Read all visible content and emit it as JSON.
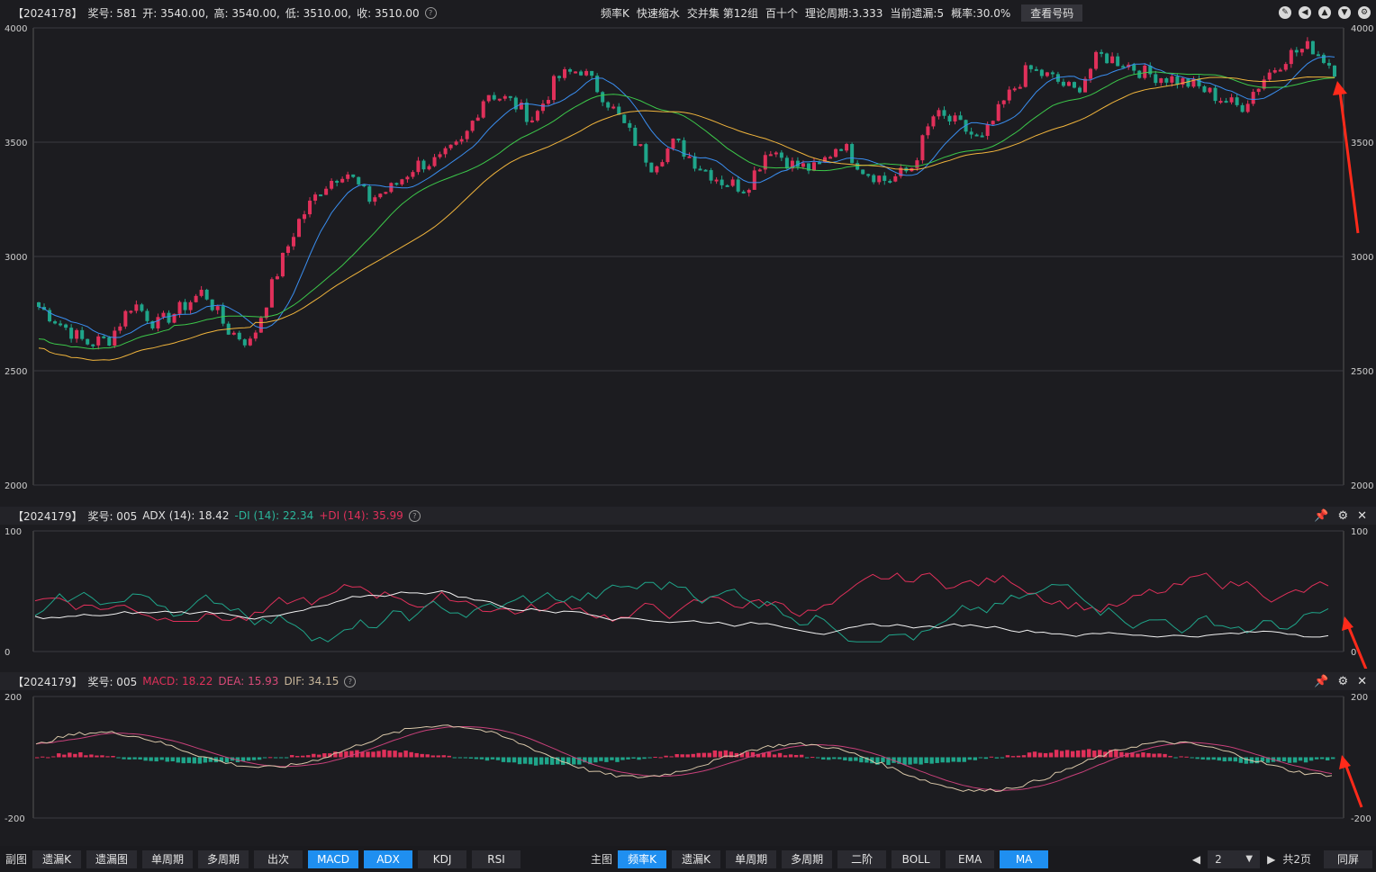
{
  "main": {
    "header": {
      "id": "【2024178】",
      "prize_label": "奖号: 581",
      "open": "开: 3540.00,",
      "high": "高: 3540.00,",
      "low": "低: 3510.00,",
      "close": "收: 3510.00",
      "center_items": [
        "频率K",
        "快速缩水",
        "交并集 第12组",
        "百十个",
        "理论周期:3.333",
        "当前遗漏:5",
        "概率:30.0%"
      ],
      "lookup_button": "查看号码"
    },
    "y_ticks": [
      "4000",
      "3500",
      "3000",
      "2500",
      "2000"
    ],
    "y_range": [
      2000,
      4000
    ]
  },
  "adx_panel": {
    "id": "【2024179】",
    "prize_label": "奖号: 005",
    "adx": "ADX (14): 18.42",
    "minus_di": "-DI (14): 22.34",
    "plus_di": "+DI (14): 35.99",
    "y_ticks": [
      "100",
      "0"
    ],
    "y_range": [
      0,
      100
    ]
  },
  "macd_panel": {
    "id": "【2024179】",
    "prize_label": "奖号: 005",
    "macd": "MACD: 18.22",
    "dea": "DEA: 15.93",
    "dif": "DIF: 34.15",
    "y_ticks": [
      "200",
      "-200"
    ],
    "y_range": [
      -200,
      200
    ]
  },
  "bottom": {
    "sub_label": "副图",
    "sub_buttons": [
      "遗漏K",
      "遗漏图",
      "单周期",
      "多周期",
      "出次",
      "MACD",
      "ADX",
      "KDJ",
      "RSI"
    ],
    "sub_active": [
      "MACD",
      "ADX"
    ],
    "main_label": "主图",
    "main_buttons": [
      "频率K",
      "遗漏K",
      "单周期",
      "多周期",
      "二阶",
      "BOLL",
      "EMA",
      "MA"
    ],
    "main_active": [
      "频率K",
      "MA"
    ],
    "page_value": "2",
    "page_total": "共2页",
    "fullscreen": "同屏"
  },
  "colors": {
    "up": "#e0305a",
    "down": "#1fa58a",
    "ma_fast": "#3a8ef0",
    "ma_mid": "#3cc84a",
    "ma_slow": "#f0b43c",
    "arrow": "#ff2a1a"
  },
  "chart_data": [
    {
      "type": "candlestick",
      "title": "频率K",
      "y_range": [
        2000,
        4000
      ],
      "approx_close_trend": [
        2780,
        2700,
        2620,
        2640,
        2800,
        2700,
        2770,
        2850,
        2680,
        2620,
        2900,
        3150,
        3300,
        3380,
        3250,
        3300,
        3400,
        3420,
        3500,
        3720,
        3680,
        3600,
        3780,
        3820,
        3700,
        3550,
        3400,
        3500,
        3400,
        3330,
        3300,
        3480,
        3400,
        3380,
        3500,
        3380,
        3330,
        3380,
        3620,
        3580,
        3500,
        3680,
        3820,
        3780,
        3720,
        3880,
        3850,
        3800,
        3780,
        3750,
        3700,
        3650,
        3780,
        3880,
        3920,
        3820
      ]
    },
    {
      "type": "line",
      "title": "ADX",
      "y_range": [
        0,
        100
      ],
      "series": [
        {
          "name": "ADX (14)",
          "last": 18.42
        },
        {
          "name": "-DI (14)",
          "last": 22.34
        },
        {
          "name": "+DI (14)",
          "last": 35.99
        }
      ]
    },
    {
      "type": "bar",
      "title": "MACD",
      "y_range": [
        -200,
        200
      ],
      "series": [
        {
          "name": "MACD",
          "last": 18.22
        },
        {
          "name": "DEA",
          "last": 15.93
        },
        {
          "name": "DIF",
          "last": 34.15
        }
      ]
    }
  ]
}
